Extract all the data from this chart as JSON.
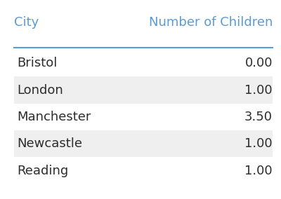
{
  "title": "",
  "columns": [
    "City",
    "Number of Children"
  ],
  "rows": [
    [
      "Bristol",
      "0.00"
    ],
    [
      "London",
      "1.00"
    ],
    [
      "Manchester",
      "3.50"
    ],
    [
      "Newcastle",
      "1.00"
    ],
    [
      "Reading",
      "1.00"
    ]
  ],
  "header_color": "#FFFFFF",
  "header_text_color": "#5b9bd5",
  "row_colors": [
    "#FFFFFF",
    "#EFEFEF"
  ],
  "row_text_color": "#2d2d2d",
  "header_line_color": "#4fa0d8",
  "background_color": "#FFFFFF",
  "col_header_fontsize": 13,
  "cell_fontsize": 13,
  "fig_width": 4.0,
  "fig_height": 2.84,
  "dpi": 100
}
